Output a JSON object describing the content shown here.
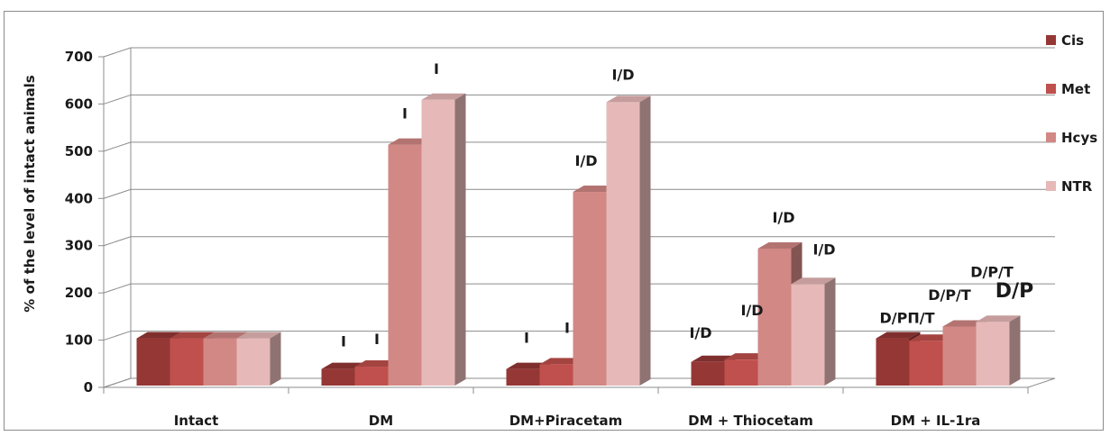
{
  "chart_data": {
    "type": "bar",
    "style": "3d-clustered-column",
    "ylabel": "% of the level of intact animals",
    "ylim": [
      0,
      700
    ],
    "yticks": [
      0,
      100,
      200,
      300,
      400,
      500,
      600,
      700
    ],
    "grid": true,
    "legend_position": "right",
    "categories": [
      "Intact",
      "DM",
      "DM+Piracetam",
      "DM + Thiocetam",
      "DM + IL-1ra"
    ],
    "series": [
      {
        "name": "Cis",
        "color": "#953735",
        "values": [
          100,
          35,
          35,
          50,
          100
        ]
      },
      {
        "name": "Met",
        "color": "#c0504d",
        "values": [
          100,
          40,
          45,
          55,
          95
        ]
      },
      {
        "name": "Hcys",
        "color": "#d28885",
        "values": [
          100,
          510,
          410,
          290,
          125
        ]
      },
      {
        "name": "NTR",
        "color": "#e6b9b8",
        "values": [
          100,
          605,
          600,
          215,
          135
        ]
      }
    ],
    "annotations": [
      {
        "text": "I",
        "category": 1,
        "series": 0,
        "value": 35
      },
      {
        "text": "I",
        "category": 1,
        "series": 1,
        "value": 40
      },
      {
        "text": "I",
        "category": 1,
        "series": 2,
        "value": 510
      },
      {
        "text": "I",
        "category": 1,
        "series": 3,
        "value": 605
      },
      {
        "text": "I",
        "category": 2,
        "series": 0,
        "value": 35
      },
      {
        "text": "I",
        "category": 2,
        "series": 1,
        "value": 45
      },
      {
        "text": "I/D",
        "category": 2,
        "series": 2,
        "value": 410
      },
      {
        "text": "I/D",
        "category": 2,
        "series": 3,
        "value": 600
      },
      {
        "text": "I/D",
        "category": 3,
        "series": 0,
        "value": 50
      },
      {
        "text": "I/D",
        "category": 3,
        "series": 1,
        "value": 55
      },
      {
        "text": "I/D",
        "category": 3,
        "series": 2,
        "value": 290
      },
      {
        "text": "I/D",
        "category": 3,
        "series": 3,
        "value": 215
      },
      {
        "text": "D/PП/T",
        "category": 4,
        "series": 0,
        "value": 100
      },
      {
        "text": "D/P/T",
        "category": 4,
        "series": 1,
        "value": 95
      },
      {
        "text": "D/P/T",
        "category": 4,
        "series": 2,
        "value": 125
      },
      {
        "text": "D/P",
        "category": 4,
        "series": 3,
        "value": 135
      }
    ]
  }
}
